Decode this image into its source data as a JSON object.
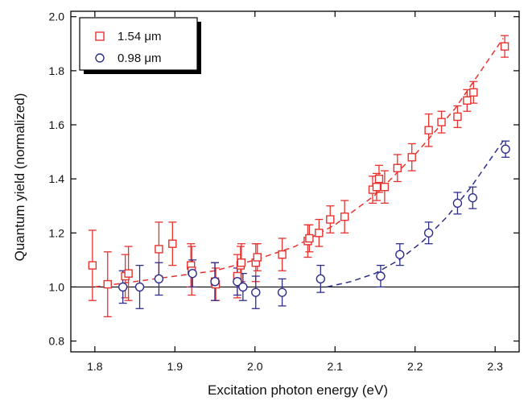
{
  "chart_data": {
    "type": "scatter",
    "xlabel": "Excitation photon energy (eV)",
    "ylabel": "Quantum yield (normalized)",
    "xlim": [
      1.77,
      2.33
    ],
    "ylim": [
      0.76,
      2.02
    ],
    "x_ticks": [
      1.8,
      1.9,
      2.0,
      2.1,
      2.2,
      2.3
    ],
    "x_tick_labels": [
      "1.8",
      "1.9",
      "2.0",
      "2.1",
      "2.2",
      "2.3"
    ],
    "y_ticks": [
      0.8,
      1.0,
      1.2,
      1.4,
      1.6,
      1.8,
      2.0
    ],
    "y_tick_labels": [
      "0.8",
      "1.0",
      "1.2",
      "1.4",
      "1.6",
      "1.8",
      "2.0"
    ],
    "grid": false,
    "legend_position": "top-left",
    "reference_line_y": 1.0,
    "series": [
      {
        "name": "1.54 μm",
        "marker": "square",
        "color": "#e8322e",
        "x": [
          1.797,
          1.816,
          1.838,
          1.842,
          1.88,
          1.897,
          1.92,
          1.921,
          1.95,
          1.951,
          1.978,
          1.982,
          1.983,
          2.001,
          2.003,
          2.034,
          2.066,
          2.068,
          2.08,
          2.094,
          2.112,
          2.147,
          2.152,
          2.155,
          2.162,
          2.178,
          2.196,
          2.217,
          2.233,
          2.253,
          2.265,
          2.273,
          2.312
        ],
        "y": [
          1.08,
          1.01,
          1.04,
          1.05,
          1.14,
          1.16,
          1.08,
          1.06,
          1.02,
          1.01,
          1.04,
          1.08,
          1.09,
          1.09,
          1.11,
          1.12,
          1.17,
          1.18,
          1.2,
          1.25,
          1.26,
          1.36,
          1.37,
          1.4,
          1.37,
          1.44,
          1.48,
          1.58,
          1.61,
          1.63,
          1.69,
          1.72,
          1.89
        ],
        "err": [
          0.13,
          0.12,
          0.08,
          0.1,
          0.1,
          0.08,
          0.08,
          0.09,
          0.07,
          0.06,
          0.08,
          0.07,
          0.07,
          0.07,
          0.05,
          0.06,
          0.06,
          0.05,
          0.05,
          0.05,
          0.06,
          0.05,
          0.05,
          0.05,
          0.06,
          0.05,
          0.05,
          0.06,
          0.04,
          0.04,
          0.04,
          0.04,
          0.04
        ]
      },
      {
        "name": "0.98 μm",
        "marker": "circle",
        "color": "#2e2e8c",
        "x": [
          1.835,
          1.856,
          1.88,
          1.922,
          1.95,
          1.978,
          1.985,
          2.001,
          2.034,
          2.082,
          2.157,
          2.181,
          2.217,
          2.253,
          2.272,
          2.313
        ],
        "y": [
          1.0,
          1.0,
          1.03,
          1.05,
          1.02,
          1.02,
          1.0,
          0.98,
          0.98,
          1.03,
          1.04,
          1.12,
          1.2,
          1.31,
          1.33,
          1.51
        ],
        "err": [
          0.06,
          0.08,
          0.06,
          0.05,
          0.07,
          0.05,
          0.05,
          0.06,
          0.05,
          0.05,
          0.04,
          0.04,
          0.04,
          0.04,
          0.04,
          0.03
        ]
      }
    ],
    "fit_lines": [
      {
        "series": "1.54 μm",
        "style": "dashed",
        "x": [
          1.8,
          1.85,
          1.9,
          1.95,
          2.0,
          2.05,
          2.1,
          2.15,
          2.2,
          2.25,
          2.31
        ],
        "y": [
          1.0,
          1.02,
          1.04,
          1.06,
          1.1,
          1.15,
          1.23,
          1.34,
          1.49,
          1.66,
          1.92
        ]
      },
      {
        "series": "0.98 μm",
        "style": "dashed",
        "x": [
          2.09,
          2.12,
          2.15,
          2.18,
          2.21,
          2.24,
          2.27,
          2.31
        ],
        "y": [
          1.0,
          1.02,
          1.05,
          1.1,
          1.17,
          1.26,
          1.37,
          1.54
        ]
      }
    ]
  }
}
